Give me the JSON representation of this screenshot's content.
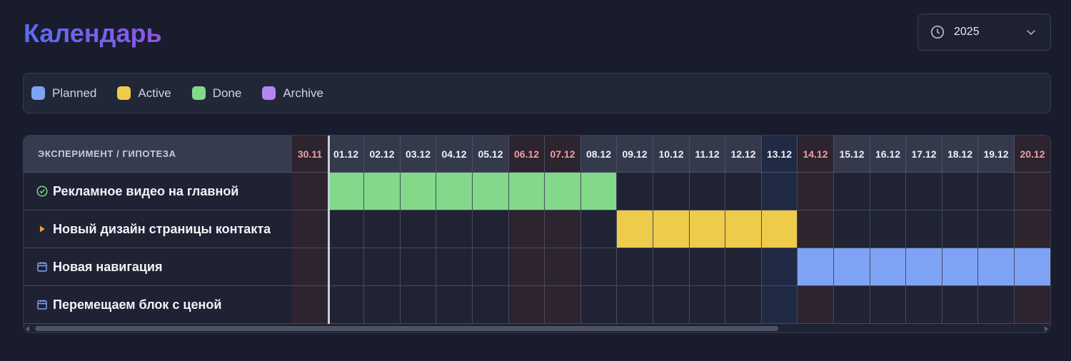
{
  "header": {
    "title": "Календарь",
    "year_select": {
      "icon": "clock-icon",
      "value": "2025",
      "chevron": "chevron-down-icon"
    }
  },
  "legend": [
    {
      "label": "Planned",
      "color": "#7ea3f5"
    },
    {
      "label": "Active",
      "color": "#eecb4a"
    },
    {
      "label": "Done",
      "color": "#82d98a"
    },
    {
      "label": "Archive",
      "color": "#b486f2"
    }
  ],
  "calendar": {
    "column_header": "ЭКСПЕРИМЕНТ / ГИПОТЕЗА",
    "dates": [
      {
        "label": "30.11",
        "kind": "weekend"
      },
      {
        "label": "01.12",
        "kind": "day"
      },
      {
        "label": "02.12",
        "kind": "day"
      },
      {
        "label": "03.12",
        "kind": "day"
      },
      {
        "label": "04.12",
        "kind": "day"
      },
      {
        "label": "05.12",
        "kind": "day"
      },
      {
        "label": "06.12",
        "kind": "weekend"
      },
      {
        "label": "07.12",
        "kind": "weekend"
      },
      {
        "label": "08.12",
        "kind": "day"
      },
      {
        "label": "09.12",
        "kind": "day"
      },
      {
        "label": "10.12",
        "kind": "day"
      },
      {
        "label": "11.12",
        "kind": "day"
      },
      {
        "label": "12.12",
        "kind": "day"
      },
      {
        "label": "13.12",
        "kind": "today"
      },
      {
        "label": "14.12",
        "kind": "weekend"
      },
      {
        "label": "15.12",
        "kind": "day"
      },
      {
        "label": "16.12",
        "kind": "day"
      },
      {
        "label": "17.12",
        "kind": "day"
      },
      {
        "label": "18.12",
        "kind": "day"
      },
      {
        "label": "19.12",
        "kind": "day"
      },
      {
        "label": "20.12",
        "kind": "weekend"
      }
    ],
    "rows": [
      {
        "label": "Рекламное видео на главной",
        "icon": "check-circle-icon",
        "status": "Done",
        "start": "01.12",
        "end": "08.12"
      },
      {
        "label": "Новый дизайн страницы контакта",
        "icon": "play-icon",
        "status": "Active",
        "start": "09.12",
        "end": "13.12"
      },
      {
        "label": "Новая навигация",
        "icon": "calendar-icon",
        "status": "Planned",
        "start": "14.12",
        "end": "20.12"
      },
      {
        "label": "Перемещаем блок с ценой",
        "icon": "calendar-icon",
        "status": "Planned",
        "start": null,
        "end": null
      }
    ]
  },
  "colors": {
    "weekend_text": "#eda0a0",
    "day_text": "#eef0f5",
    "weekend_bg": "#2d2430",
    "today_bg": "#202a45",
    "day_header_bg": "#343a4c",
    "day_cell_bg": "#1f2333"
  }
}
